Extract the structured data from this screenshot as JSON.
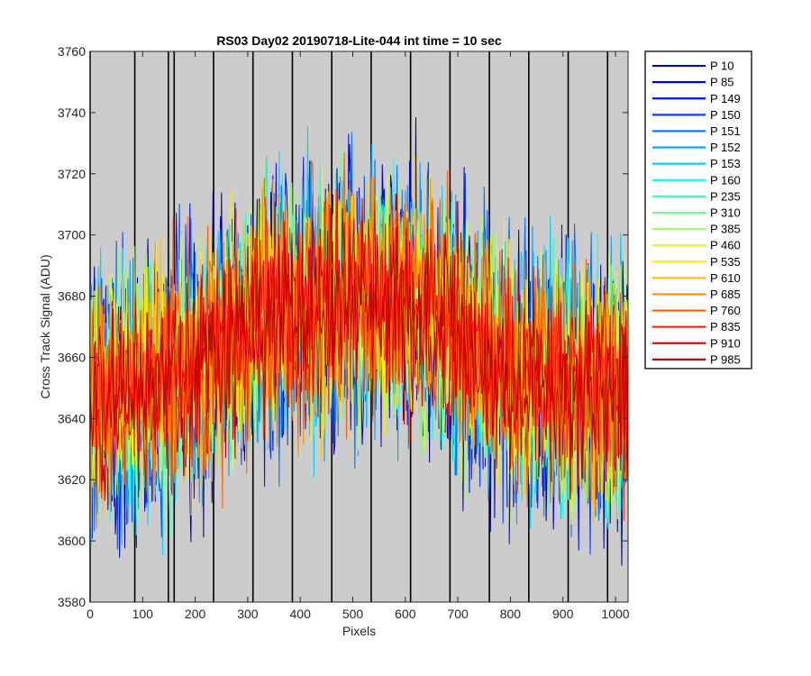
{
  "chart_data": {
    "type": "line",
    "title": "RS03 Day02 20190718-Lite-044 int time = 10 sec",
    "xlabel": "Pixels",
    "ylabel": "Cross Track Signal (ADU)",
    "xlim": [
      0,
      1024
    ],
    "ylim": [
      3580,
      3760
    ],
    "xticks": [
      0,
      100,
      200,
      300,
      400,
      500,
      600,
      700,
      800,
      900,
      1000
    ],
    "yticks": [
      3580,
      3600,
      3620,
      3640,
      3660,
      3680,
      3700,
      3720,
      3740,
      3760
    ],
    "x_tick_labels": [
      "0",
      "100",
      "200",
      "300",
      "400",
      "500",
      "600",
      "700",
      "800",
      "900",
      "1000"
    ],
    "y_tick_labels": [
      "3580",
      "3600",
      "3620",
      "3640",
      "3660",
      "3680",
      "3700",
      "3720",
      "3740",
      "3760"
    ],
    "vertical_lines_x": [
      0,
      85,
      149,
      160,
      235,
      310,
      385,
      460,
      535,
      610,
      685,
      760,
      835,
      910,
      985
    ],
    "plot_background": "#cccccc",
    "legend_position": "outside-right",
    "profile": {
      "x": [
        0,
        100,
        200,
        300,
        400,
        500,
        600,
        700,
        800,
        900,
        1024
      ],
      "center": [
        3643,
        3650,
        3657,
        3670,
        3676,
        3680,
        3678,
        3668,
        3655,
        3652,
        3648
      ],
      "noise_amplitude": 28
    },
    "series": [
      {
        "name": "P 10",
        "color": "#00008f"
      },
      {
        "name": "P 85",
        "color": "#0000bf"
      },
      {
        "name": "P 149",
        "color": "#0010ef"
      },
      {
        "name": "P 150",
        "color": "#0040ff"
      },
      {
        "name": "P 151",
        "color": "#0070ff"
      },
      {
        "name": "P 152",
        "color": "#00a0ff"
      },
      {
        "name": "P 153",
        "color": "#00cfff"
      },
      {
        "name": "P 160",
        "color": "#10ffef"
      },
      {
        "name": "P 235",
        "color": "#40ffbf"
      },
      {
        "name": "P 310",
        "color": "#70ff8f"
      },
      {
        "name": "P 385",
        "color": "#a0ff60"
      },
      {
        "name": "P 460",
        "color": "#cfff30"
      },
      {
        "name": "P 535",
        "color": "#ffef00"
      },
      {
        "name": "P 610",
        "color": "#ffbf00"
      },
      {
        "name": "P 685",
        "color": "#ff9000"
      },
      {
        "name": "P 760",
        "color": "#ff6000"
      },
      {
        "name": "P 835",
        "color": "#ff3000"
      },
      {
        "name": "P 910",
        "color": "#ef0000"
      },
      {
        "name": "P 985",
        "color": "#bf0000"
      }
    ]
  }
}
